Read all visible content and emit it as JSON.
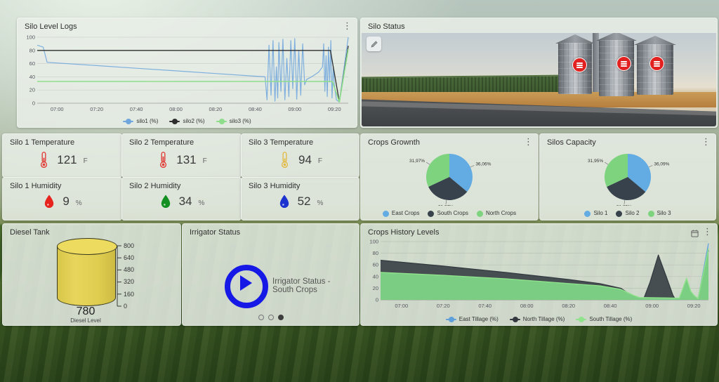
{
  "icons": {
    "kebab": "⋮"
  },
  "panels": {
    "silo_level_logs": {
      "title": "Silo Level Logs"
    },
    "silo_status": {
      "title": "Silo Status"
    },
    "stats": [
      {
        "title": "Silo 1 Temperature",
        "value": "121",
        "unit": "F",
        "icon": "thermometer-icon",
        "icon_color": "#e0413a"
      },
      {
        "title": "Silo 2 Temperature",
        "value": "131",
        "unit": "F",
        "icon": "thermometer-icon",
        "icon_color": "#e0413a"
      },
      {
        "title": "Silo 3 Temperature",
        "value": "94",
        "unit": "F",
        "icon": "thermometer-icon",
        "icon_color": "#e2bc4a"
      },
      {
        "title": "Silo 1 Humidity",
        "value": "9",
        "unit": "%",
        "icon": "droplet-icon",
        "icon_color": "#e6231c"
      },
      {
        "title": "Silo 2 Humidity",
        "value": "34",
        "unit": "%",
        "icon": "droplet-icon",
        "icon_color": "#148f22"
      },
      {
        "title": "Silo 3 Humidity",
        "value": "52",
        "unit": "%",
        "icon": "droplet-icon",
        "icon_color": "#1c33cf"
      }
    ],
    "crops_growth": {
      "title": "Crops Grownth"
    },
    "silos_capacity": {
      "title": "Silos Capacity"
    },
    "diesel_tank": {
      "title": "Diesel Tank",
      "value": "780",
      "label": "Diesel Level",
      "max": 800,
      "axis": [
        "800",
        "640",
        "480",
        "320",
        "160",
        "0"
      ]
    },
    "irrigator": {
      "title": "Irrigator Status",
      "message": "Irrigator Status - South Crops",
      "dots": [
        "empty",
        "empty",
        "filled"
      ]
    },
    "crops_history": {
      "title": "Crops History Levels"
    }
  },
  "chart_data": [
    {
      "type": "line",
      "title": "Silo Level Logs",
      "xlim": [
        0,
        157
      ],
      "ylim": [
        0,
        100
      ],
      "y_ticks": [
        0,
        20,
        40,
        60,
        80,
        100
      ],
      "x_ticks": [
        "07:00",
        "07:20",
        "07:40",
        "08:00",
        "08:20",
        "08:40",
        "09:00",
        "09:20"
      ],
      "x_tick_pos": [
        10,
        30,
        50,
        70,
        90,
        110,
        130,
        150
      ],
      "legend_position": "bottom",
      "grid": true,
      "series": [
        {
          "name": "silo1 (%)",
          "color": "#6fa6dd",
          "width": 1.2,
          "opacity": 0.88,
          "points": [
            [
              0,
              88
            ],
            [
              3,
              85
            ],
            [
              5,
              62
            ],
            [
              10,
              61
            ],
            [
              30,
              57
            ],
            [
              50,
              53
            ],
            [
              70,
              49
            ],
            [
              90,
              45
            ],
            [
              110,
              41
            ],
            [
              115,
              40
            ],
            [
              116,
              5
            ],
            [
              117,
              88
            ],
            [
              118,
              12
            ],
            [
              119,
              95
            ],
            [
              120,
              3
            ],
            [
              120.7,
              55
            ],
            [
              121.4,
              8
            ],
            [
              122,
              92
            ],
            [
              123,
              18
            ],
            [
              124,
              97
            ],
            [
              125,
              5
            ],
            [
              126,
              68
            ],
            [
              127,
              10
            ],
            [
              128,
              95
            ],
            [
              129,
              22
            ],
            [
              130,
              98
            ],
            [
              131,
              6
            ],
            [
              132,
              80
            ],
            [
              133,
              12
            ],
            [
              134,
              90
            ],
            [
              135,
              28
            ],
            [
              136,
              36
            ],
            [
              139,
              41
            ],
            [
              142,
              47
            ],
            [
              144,
              55
            ],
            [
              144.6,
              90
            ],
            [
              145.2,
              18
            ],
            [
              145.8,
              72
            ],
            [
              146.4,
              10
            ],
            [
              147,
              85
            ],
            [
              147.6,
              32
            ],
            [
              148.2,
              95
            ],
            [
              148.8,
              8
            ],
            [
              149.4,
              55
            ],
            [
              150,
              28
            ],
            [
              151,
              5
            ],
            [
              152.5,
              2
            ],
            [
              157,
              100
            ]
          ]
        },
        {
          "name": "silo2 (%)",
          "color": "#2e2e2e",
          "width": 1.3,
          "opacity": 1,
          "points": [
            [
              0,
              80
            ],
            [
              148,
              80
            ],
            [
              152.5,
              2
            ],
            [
              157,
              87
            ]
          ]
        },
        {
          "name": "silo3 (%)",
          "color": "#8edd8b",
          "width": 1.6,
          "opacity": 1,
          "points": [
            [
              0,
              33
            ],
            [
              149,
              33
            ],
            [
              152.5,
              2
            ],
            [
              157,
              82
            ]
          ]
        }
      ]
    },
    {
      "type": "area",
      "title": "Crops History Levels",
      "xlim": [
        0,
        157
      ],
      "ylim": [
        0,
        100
      ],
      "y_ticks": [
        0,
        20,
        40,
        60,
        80,
        100
      ],
      "x_ticks": [
        "07:00",
        "07:20",
        "07:40",
        "08:00",
        "08:20",
        "08:40",
        "09:00",
        "09:20"
      ],
      "x_tick_pos": [
        10,
        30,
        50,
        70,
        90,
        110,
        130,
        150
      ],
      "legend_position": "bottom",
      "grid": true,
      "series": [
        {
          "name": "North Tillage (%)",
          "color": "#33393f",
          "fill": "#3b4248",
          "fill_opacity": 0.92,
          "width": 1.2,
          "points": [
            [
              0,
              68
            ],
            [
              30,
              58
            ],
            [
              60,
              47
            ],
            [
              90,
              35
            ],
            [
              105,
              28
            ],
            [
              115,
              20
            ],
            [
              120,
              8
            ],
            [
              122,
              2
            ],
            [
              126,
              2
            ],
            [
              129,
              30
            ],
            [
              133,
              77
            ],
            [
              137,
              38
            ],
            [
              140,
              8
            ],
            [
              141,
              2
            ],
            [
              150,
              2
            ],
            [
              152,
              2
            ],
            [
              157,
              85
            ]
          ]
        },
        {
          "name": "East Tillage (%)",
          "color": "#5ea0dc",
          "fill": "#79b7ea",
          "fill_opacity": 0.85,
          "width": 1.2,
          "points": [
            [
              0,
              46
            ],
            [
              30,
              41
            ],
            [
              60,
              35
            ],
            [
              90,
              27
            ],
            [
              105,
              23
            ],
            [
              115,
              17
            ],
            [
              121,
              7
            ],
            [
              124,
              3
            ],
            [
              140,
              2
            ],
            [
              143,
              2
            ],
            [
              145,
              19
            ],
            [
              146.5,
              30
            ],
            [
              148.5,
              13
            ],
            [
              150,
              7
            ],
            [
              152,
              1
            ],
            [
              157,
              97
            ]
          ]
        },
        {
          "name": "South Tillage (%)",
          "color": "#90e28c",
          "fill": "#7bd07b",
          "fill_opacity": 0.92,
          "width": 1.4,
          "points": [
            [
              0,
              47
            ],
            [
              30,
              42
            ],
            [
              60,
              36
            ],
            [
              90,
              28
            ],
            [
              105,
              24
            ],
            [
              115,
              18
            ],
            [
              121,
              8
            ],
            [
              124,
              4
            ],
            [
              140,
              3
            ],
            [
              143,
              3
            ],
            [
              145,
              22
            ],
            [
              146.5,
              37
            ],
            [
              148.5,
              15
            ],
            [
              150,
              8
            ],
            [
              152,
              2
            ],
            [
              157,
              88
            ]
          ]
        }
      ],
      "legend_order": [
        "East Tillage (%)",
        "North Tillage (%)",
        "South Tillage (%)"
      ]
    },
    {
      "type": "pie",
      "title": "Crops Grownth",
      "labels": [
        "East Crops",
        "South Crops",
        "North Crops"
      ],
      "values": [
        36.06,
        31.97,
        31.97
      ],
      "display": [
        "36,06%",
        "31,97%",
        "31,97%"
      ],
      "colors": [
        "#62abe3",
        "#37424c",
        "#7ed37e"
      ],
      "legend_position": "bottom"
    },
    {
      "type": "pie",
      "title": "Silos Capacity",
      "labels": [
        "Silo 1",
        "Silo 2",
        "Silo 3"
      ],
      "values": [
        36.09,
        31.95,
        31.95
      ],
      "display": [
        "36,09%",
        "31,95%",
        "31,95%"
      ],
      "colors": [
        "#62abe3",
        "#37424c",
        "#7ed37e"
      ],
      "legend_position": "bottom"
    }
  ]
}
